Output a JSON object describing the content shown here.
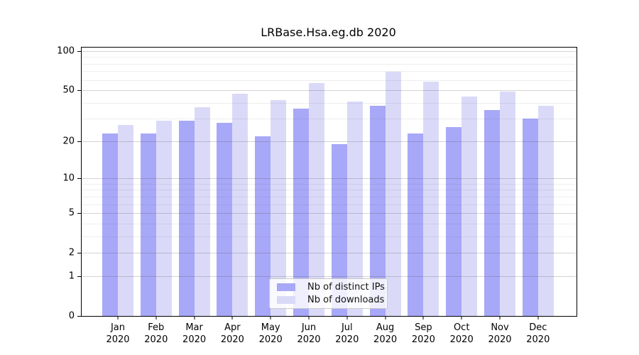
{
  "title": "LRBase.Hsa.eg.db 2020",
  "chart_data": {
    "type": "bar",
    "title": "LRBase.Hsa.eg.db 2020",
    "categories": [
      "Jan",
      "Feb",
      "Mar",
      "Apr",
      "May",
      "Jun",
      "Jul",
      "Aug",
      "Sep",
      "Oct",
      "Nov",
      "Dec"
    ],
    "year": "2020",
    "series": [
      {
        "name": "Nb of distinct IPs",
        "color": "#a8a8f8",
        "values": [
          23,
          23,
          29,
          28,
          22,
          36,
          19,
          38,
          23,
          26,
          35,
          30
        ]
      },
      {
        "name": "Nb of downloads",
        "color": "#dadaf8",
        "values": [
          27,
          29,
          37,
          47,
          42,
          57,
          41,
          70,
          58,
          45,
          49,
          38
        ]
      }
    ],
    "y_scale": "log10(1+x)",
    "y_ticks": [
      0,
      1,
      2,
      5,
      10,
      20,
      50,
      100
    ],
    "y_minor_gridlines": [
      3,
      4,
      6,
      7,
      8,
      9,
      30,
      40,
      60,
      70,
      80,
      90
    ],
    "ylim": [
      0,
      107
    ],
    "grid": true,
    "legend_position": "bottom-center",
    "axis_color": "#000000",
    "background_color": "#ffffff"
  }
}
